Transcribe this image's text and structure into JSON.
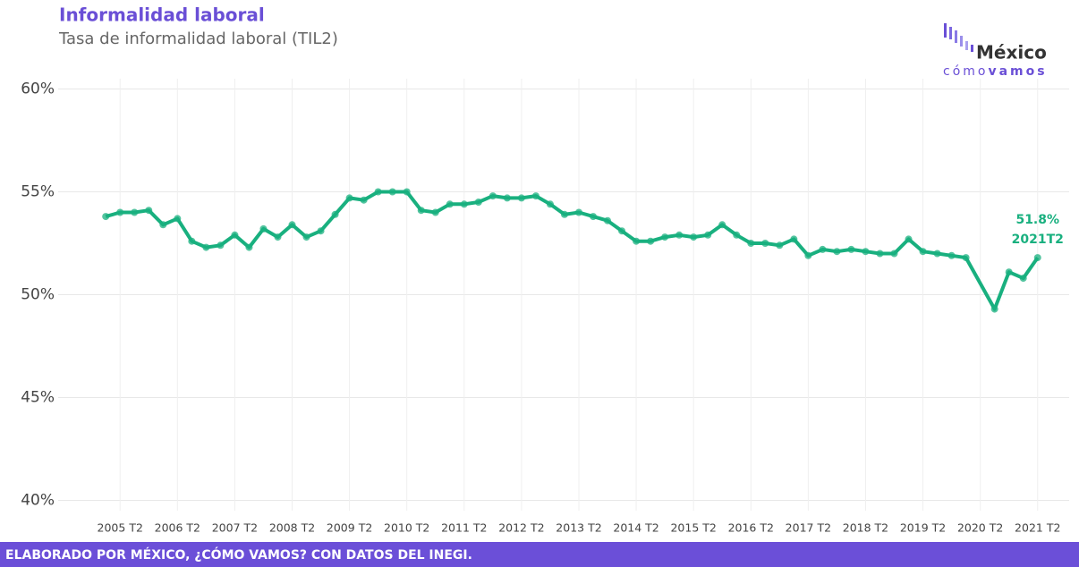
{
  "chart_data": {
    "type": "line",
    "title": "Informalidad laboral",
    "subtitle": "Tasa de informalidad laboral (TIL2)",
    "footer": "ELABORADO POR MÉXICO, ¿CÓMO VAMOS? CON DATOS DEL INEGI.",
    "logo": {
      "name": "México",
      "tagline_a": "cómo",
      "tagline_b": "vamos"
    },
    "annotations": [
      "51.8%",
      "2021T2"
    ],
    "x": [
      2005,
      2005.25,
      2005.5,
      2005.75,
      2006,
      2006.25,
      2006.5,
      2006.75,
      2007,
      2007.25,
      2007.5,
      2007.75,
      2008,
      2008.25,
      2008.5,
      2008.75,
      2009,
      2009.25,
      2009.5,
      2009.75,
      2010,
      2010.25,
      2010.5,
      2010.75,
      2011,
      2011.25,
      2011.5,
      2011.75,
      2012,
      2012.25,
      2012.5,
      2012.75,
      2013,
      2013.25,
      2013.5,
      2013.75,
      2014,
      2014.25,
      2014.5,
      2014.75,
      2015,
      2015.25,
      2015.5,
      2015.75,
      2016,
      2016.25,
      2016.5,
      2016.75,
      2017,
      2017.25,
      2017.5,
      2017.75,
      2018,
      2018.25,
      2018.5,
      2018.75,
      2019,
      2019.25,
      2019.5,
      2019.75,
      2020,
      2020.5,
      2020.75,
      2021,
      2021.25
    ],
    "series": [
      {
        "name": "TIL2",
        "color": "#19b07f",
        "values": [
          53.8,
          54.0,
          54.0,
          54.1,
          53.4,
          53.7,
          52.6,
          52.3,
          52.4,
          52.9,
          52.3,
          53.2,
          52.8,
          53.4,
          52.8,
          53.1,
          53.9,
          54.7,
          54.6,
          55.0,
          55.0,
          55.0,
          54.1,
          54.0,
          54.4,
          54.4,
          54.5,
          54.8,
          54.7,
          54.7,
          54.8,
          54.4,
          53.9,
          54.0,
          53.8,
          53.6,
          53.1,
          52.6,
          52.6,
          52.8,
          52.9,
          52.8,
          52.9,
          53.4,
          52.9,
          52.5,
          52.5,
          52.4,
          52.7,
          51.9,
          52.2,
          52.1,
          52.2,
          52.1,
          52.0,
          52.0,
          52.7,
          52.1,
          52.0,
          51.9,
          51.8,
          49.3,
          51.1,
          50.8,
          51.8
        ]
      }
    ],
    "xlim": [
      2004.17,
      2021.8
    ],
    "xticks": [
      {
        "value": 2005.25,
        "label": "2005 T2"
      },
      {
        "value": 2006.25,
        "label": "2006 T2"
      },
      {
        "value": 2007.25,
        "label": "2007 T2"
      },
      {
        "value": 2008.25,
        "label": "2008 T2"
      },
      {
        "value": 2009.25,
        "label": "2009 T2"
      },
      {
        "value": 2010.25,
        "label": "2010 T2"
      },
      {
        "value": 2011.25,
        "label": "2011 T2"
      },
      {
        "value": 2012.25,
        "label": "2012 T2"
      },
      {
        "value": 2013.25,
        "label": "2013 T2"
      },
      {
        "value": 2014.25,
        "label": "2014 T2"
      },
      {
        "value": 2015.25,
        "label": "2015 T2"
      },
      {
        "value": 2016.25,
        "label": "2016 T2"
      },
      {
        "value": 2017.25,
        "label": "2017 T2"
      },
      {
        "value": 2018.25,
        "label": "2018 T2"
      },
      {
        "value": 2019.25,
        "label": "2019 T2"
      },
      {
        "value": 2020.25,
        "label": "2020 T2"
      },
      {
        "value": 2021.25,
        "label": "2021 T2"
      }
    ],
    "ylim": [
      39.5,
      60.5
    ],
    "yticks": [
      {
        "value": 40,
        "label": "40%"
      },
      {
        "value": 45,
        "label": "45%"
      },
      {
        "value": 50,
        "label": "50%"
      },
      {
        "value": 55,
        "label": "55%"
      },
      {
        "value": 60,
        "label": "60%"
      }
    ],
    "grid": true
  }
}
